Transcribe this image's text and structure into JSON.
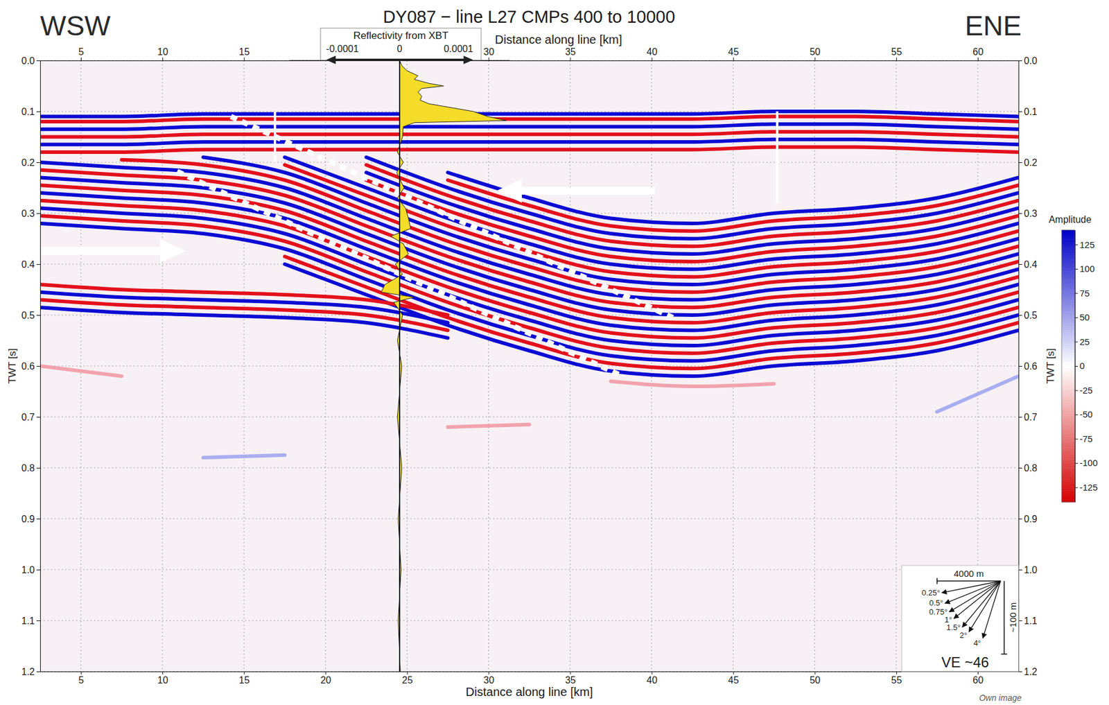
{
  "chart_data": {
    "type": "seismic",
    "title": "DY087 − line L27 CMPs 400 to 10000",
    "direction_left": "WSW",
    "direction_right": "ENE",
    "xlabel": "Distance along line [km]",
    "x2label": "Distance along line [km]",
    "ylabel": "TWT [s]",
    "y2label": "TWT [s]",
    "xlim": [
      2.5,
      62.5
    ],
    "xticks": [
      5,
      10,
      15,
      20,
      25,
      30,
      35,
      40,
      45,
      50,
      55,
      60
    ],
    "x2lim": [
      2.5,
      62.5
    ],
    "x2ticks": [
      5,
      10,
      15,
      30,
      35,
      40,
      45,
      50,
      55,
      60
    ],
    "ylim": [
      0,
      1.2
    ],
    "yticks": [
      {
        "value": 0,
        "label": "0.0"
      },
      0.1,
      0.2,
      0.3,
      0.4,
      0.5,
      0.6,
      0.7,
      0.8,
      0.9,
      {
        "value": 1,
        "label": "1.0"
      },
      1.1,
      1.2
    ],
    "y2lim": [
      0,
      1.2
    ],
    "y2ticks": [
      {
        "value": 0,
        "label": "0.0"
      },
      0.1,
      0.2,
      0.3,
      0.4,
      0.5,
      0.6,
      0.7,
      0.8,
      0.9,
      {
        "value": 1,
        "label": "1.0"
      },
      1.1,
      1.2
    ],
    "grid": true,
    "x": [
      2.5,
      7.5,
      12.5,
      17.5,
      22.5,
      27.5,
      32.5,
      37.5,
      42.5,
      47.5,
      52.5,
      57.5,
      62.5
    ],
    "series": [
      {
        "color": "#0b0bd4",
        "values": [
          0.11,
          0.11,
          0.105,
          0.105,
          0.105,
          0.105,
          0.105,
          0.105,
          0.105,
          0.1,
          0.1,
          0.105,
          0.11
        ]
      },
      {
        "color": "#e3101c",
        "values": [
          0.12,
          0.12,
          0.115,
          0.115,
          0.115,
          0.115,
          0.115,
          0.115,
          0.115,
          0.11,
          0.11,
          0.115,
          0.12
        ]
      },
      {
        "color": "#0b0bd4",
        "values": [
          0.135,
          0.135,
          0.13,
          0.13,
          0.13,
          0.13,
          0.13,
          0.13,
          0.13,
          0.125,
          0.125,
          0.13,
          0.135
        ]
      },
      {
        "color": "#e3101c",
        "values": [
          0.15,
          0.15,
          0.145,
          0.145,
          0.145,
          0.145,
          0.145,
          0.145,
          0.145,
          0.14,
          0.14,
          0.145,
          0.15
        ]
      },
      {
        "color": "#0b0bd4",
        "values": [
          0.165,
          0.165,
          0.16,
          0.16,
          0.16,
          0.16,
          0.16,
          0.16,
          0.16,
          0.155,
          0.155,
          0.16,
          0.165
        ]
      },
      {
        "color": "#e3101c",
        "values": [
          0.18,
          0.18,
          0.175,
          0.175,
          0.175,
          0.175,
          0.175,
          0.175,
          0.175,
          0.17,
          0.17,
          0.175,
          0.18
        ]
      },
      {
        "color": "#0b0bd4",
        "values": [
          null,
          null,
          null,
          null,
          null,
          0.22,
          0.27,
          0.31,
          0.32,
          0.3,
          0.29,
          0.27,
          0.23
        ]
      },
      {
        "color": "#e3101c",
        "values": [
          null,
          null,
          null,
          null,
          null,
          0.235,
          0.285,
          0.325,
          0.335,
          0.315,
          0.305,
          0.285,
          0.245
        ]
      },
      {
        "color": "#0b0bd4",
        "values": [
          null,
          null,
          null,
          null,
          0.19,
          0.25,
          0.3,
          0.34,
          0.35,
          0.33,
          0.32,
          0.3,
          0.26
        ]
      },
      {
        "color": "#e3101c",
        "values": [
          null,
          null,
          null,
          null,
          0.205,
          0.265,
          0.315,
          0.355,
          0.365,
          0.345,
          0.335,
          0.315,
          0.275
        ]
      },
      {
        "color": "#0b0bd4",
        "values": [
          null,
          null,
          null,
          null,
          0.22,
          0.28,
          0.33,
          0.37,
          0.38,
          0.36,
          0.35,
          0.33,
          0.29
        ]
      },
      {
        "color": "#e3101c",
        "values": [
          null,
          null,
          null,
          null,
          0.235,
          0.295,
          0.345,
          0.385,
          0.395,
          0.375,
          0.365,
          0.345,
          0.305
        ]
      },
      {
        "color": "#0b0bd4",
        "values": [
          null,
          null,
          null,
          0.19,
          0.25,
          0.31,
          0.36,
          0.4,
          0.41,
          0.39,
          0.38,
          0.36,
          0.32
        ]
      },
      {
        "color": "#e3101c",
        "values": [
          null,
          null,
          null,
          0.205,
          0.265,
          0.325,
          0.375,
          0.415,
          0.425,
          0.405,
          0.395,
          0.375,
          0.335
        ]
      },
      {
        "color": "#0b0bd4",
        "values": [
          null,
          null,
          0.19,
          0.22,
          0.28,
          0.34,
          0.39,
          0.43,
          0.44,
          0.42,
          0.41,
          0.39,
          0.35
        ]
      },
      {
        "color": "#e3101c",
        "values": [
          null,
          0.195,
          0.205,
          0.235,
          0.295,
          0.355,
          0.405,
          0.445,
          0.455,
          0.435,
          0.425,
          0.405,
          0.365
        ]
      },
      {
        "color": "#0b0bd4",
        "values": [
          0.2,
          0.21,
          0.22,
          0.25,
          0.31,
          0.37,
          0.42,
          0.46,
          0.47,
          0.45,
          0.44,
          0.42,
          0.38
        ]
      },
      {
        "color": "#e3101c",
        "values": [
          0.215,
          0.225,
          0.235,
          0.265,
          0.325,
          0.385,
          0.435,
          0.475,
          0.485,
          0.465,
          0.455,
          0.435,
          0.395
        ]
      },
      {
        "color": "#0b0bd4",
        "values": [
          0.23,
          0.24,
          0.25,
          0.28,
          0.34,
          0.4,
          0.45,
          0.49,
          0.5,
          0.48,
          0.47,
          0.45,
          0.41
        ]
      },
      {
        "color": "#e3101c",
        "values": [
          0.245,
          0.255,
          0.265,
          0.295,
          0.355,
          0.415,
          0.465,
          0.505,
          0.515,
          0.495,
          0.485,
          0.465,
          0.425
        ]
      },
      {
        "color": "#0b0bd4",
        "values": [
          0.26,
          0.27,
          0.28,
          0.31,
          0.37,
          0.43,
          0.48,
          0.52,
          0.53,
          0.51,
          0.5,
          0.48,
          0.44
        ]
      },
      {
        "color": "#e3101c",
        "values": [
          0.275,
          0.285,
          0.295,
          0.325,
          0.385,
          0.445,
          0.495,
          0.535,
          0.545,
          0.525,
          0.515,
          0.495,
          0.455
        ]
      },
      {
        "color": "#0b0bd4",
        "values": [
          0.29,
          0.3,
          0.31,
          0.34,
          0.4,
          0.46,
          0.51,
          0.55,
          0.56,
          0.54,
          0.53,
          0.51,
          0.47
        ]
      },
      {
        "color": "#e3101c",
        "values": [
          0.305,
          0.315,
          0.325,
          0.355,
          0.415,
          0.475,
          0.525,
          0.565,
          0.575,
          0.555,
          0.545,
          0.525,
          0.485
        ]
      },
      {
        "color": "#0b0bd4",
        "values": [
          0.32,
          0.33,
          0.34,
          0.37,
          0.43,
          0.49,
          0.54,
          0.58,
          0.59,
          0.57,
          0.56,
          0.54,
          0.5
        ]
      },
      {
        "color": "#e3101c",
        "values": [
          null,
          null,
          null,
          0.385,
          0.445,
          0.505,
          0.555,
          0.595,
          0.605,
          0.585,
          0.575,
          0.555,
          0.515
        ]
      },
      {
        "color": "#0b0bd4",
        "values": [
          null,
          null,
          null,
          0.4,
          0.46,
          0.52,
          0.57,
          0.61,
          0.62,
          0.6,
          0.59,
          0.57,
          0.53
        ]
      },
      {
        "color": "#e3101c",
        "values": [
          0.44,
          0.45,
          0.455,
          0.46,
          0.47,
          0.5,
          null,
          null,
          null,
          null,
          null,
          null,
          null
        ]
      },
      {
        "color": "#0b0bd4",
        "values": [
          0.455,
          0.465,
          0.47,
          0.475,
          0.485,
          0.515,
          null,
          null,
          null,
          null,
          null,
          null,
          null
        ]
      },
      {
        "color": "#e3101c",
        "values": [
          0.47,
          0.48,
          0.485,
          0.49,
          0.5,
          0.53,
          null,
          null,
          null,
          null,
          null,
          null,
          null
        ]
      },
      {
        "color": "#0b0bd4",
        "values": [
          0.485,
          0.495,
          0.5,
          0.505,
          0.515,
          0.545,
          null,
          null,
          null,
          null,
          null,
          null,
          null
        ]
      },
      {
        "color": "#f2a3ad",
        "values": [
          null,
          null,
          null,
          null,
          null,
          null,
          null,
          0.63,
          0.64,
          0.635,
          null,
          null,
          null
        ]
      },
      {
        "color": "#a9aef0",
        "values": [
          null,
          null,
          null,
          null,
          null,
          null,
          null,
          null,
          null,
          null,
          null,
          0.69,
          0.62
        ]
      },
      {
        "color": "#f2a3ad",
        "values": [
          null,
          null,
          null,
          null,
          null,
          0.72,
          0.715,
          null,
          null,
          null,
          null,
          null,
          null
        ]
      },
      {
        "color": "#a9aef0",
        "values": [
          null,
          null,
          0.78,
          0.775,
          null,
          null,
          null,
          null,
          null,
          null,
          null,
          null,
          null
        ]
      },
      {
        "color": "#f2a3ad",
        "values": [
          0.6,
          0.62,
          null,
          null,
          null,
          null,
          null,
          null,
          null,
          null,
          null,
          null,
          null
        ]
      }
    ],
    "gaps": [
      {
        "x": 16.9,
        "y": [
          0.1,
          0.2
        ]
      },
      {
        "x": 47.7,
        "y": [
          0.1,
          0.28
        ]
      }
    ],
    "annotations": [
      {
        "type": "dashed_line",
        "x": [
          14.2,
          41.3
        ],
        "y": [
          0.11,
          0.505
        ]
      },
      {
        "type": "dashed_line",
        "x": [
          10.9,
          38
        ],
        "y": [
          0.218,
          0.617
        ]
      },
      {
        "type": "arrow",
        "x": [
          2.5,
          11.4
        ],
        "y": [
          0.374,
          0.374
        ]
      },
      {
        "type": "arrow",
        "x": [
          40.2,
          30.5
        ],
        "y": [
          0.256,
          0.256
        ]
      }
    ],
    "inset": {
      "type": "area",
      "title": "Reflectivity from XBT",
      "color": "#f5dc28",
      "xlim": [
        -0.00015,
        0.00015
      ],
      "xticks": [
        -0.0001,
        0,
        0.0001
      ],
      "y": [
        0,
        0.01,
        0.02,
        0.03,
        0.037,
        0.045,
        0.05,
        0.055,
        0.062,
        0.07,
        0.078,
        0.085,
        0.09,
        0.095,
        0.1,
        0.105,
        0.11,
        0.118,
        0.122,
        0.13,
        0.15,
        0.18,
        0.2,
        0.22,
        0.25,
        0.27,
        0.29,
        0.31,
        0.33,
        0.345,
        0.36,
        0.38,
        0.4,
        0.42,
        0.44,
        0.455,
        0.465,
        0.475,
        0.5,
        0.55,
        0.6,
        0.7,
        0.8,
        0.9,
        1,
        1.1,
        1.2
      ],
      "values": [
        0,
        3e-06,
        1e-05,
        2.5e-05,
        2e-05,
        4e-05,
        6e-05,
        3e-05,
        2.5e-05,
        3e-05,
        2.8e-05,
        4e-05,
        6e-05,
        8e-05,
        0.0001,
        0.00011,
        0.00012,
        0.000145,
        2e-05,
        5e-06,
        4e-06,
        -3e-06,
        5e-06,
        -4e-06,
        6e-06,
        -3e-06,
        8e-06,
        1.2e-05,
        1.5e-05,
        -1.2e-05,
        5e-06,
        1.2e-05,
        -6e-06,
        4e-06,
        -2e-05,
        -2.5e-05,
        2e-05,
        -8e-06,
        4e-06,
        -3e-06,
        3e-06,
        -3e-06,
        3e-06,
        -2e-06,
        2e-06,
        -2e-06,
        1e-06
      ]
    },
    "colorbar": {
      "title": "Amplitude",
      "range": [
        -140,
        140
      ],
      "ticks": [
        125,
        100,
        75,
        50,
        25,
        0,
        -25,
        -50,
        -75,
        -100,
        -125
      ]
    },
    "scale_bar": {
      "horizontal_m": 4000,
      "horizontal_label": "4000 m",
      "vertical_m": 100,
      "vertical_label": "~100 m",
      "angles": [
        0.25,
        0.5,
        0.75,
        1,
        1.5,
        2,
        4
      ],
      "angle_labels": [
        "0.25°",
        "0.5°",
        "0.75°",
        "1°",
        "1.5°",
        "2°",
        "4°"
      ],
      "ve_label": "VE ~46"
    },
    "credit": "Own image"
  }
}
